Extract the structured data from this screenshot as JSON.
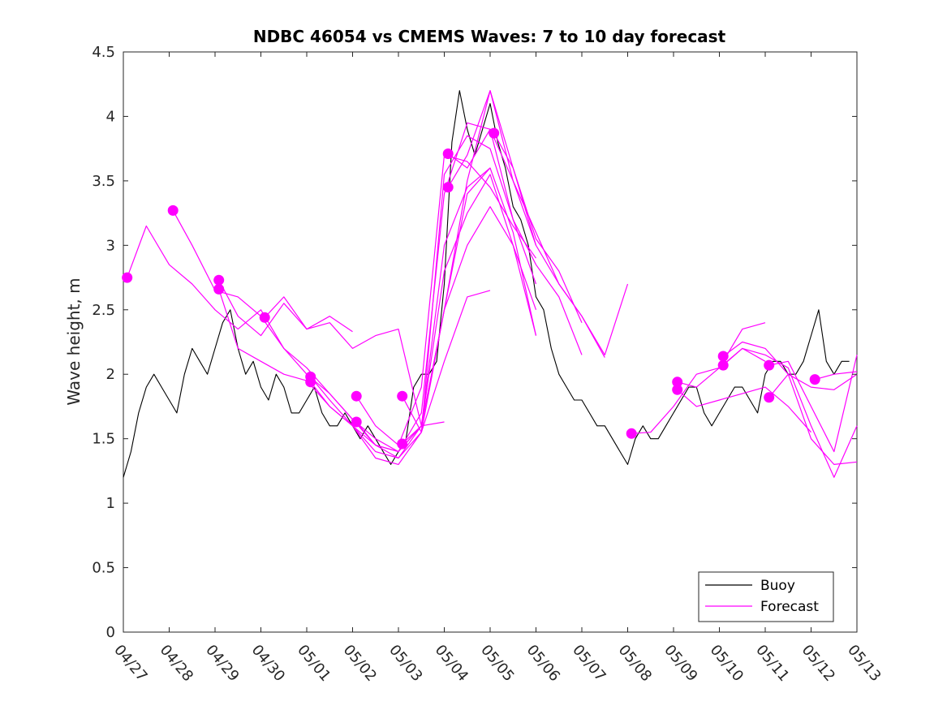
{
  "chart_data": {
    "type": "line",
    "title": "NDBC 46054 vs CMEMS Waves: 7 to 10 day forecast",
    "xlabel": "",
    "ylabel": "Wave height, m",
    "x_axis": {
      "type": "date",
      "min": "04/27",
      "max": "05/13",
      "unit": "days"
    },
    "xtick_labels": [
      "04/27",
      "04/28",
      "04/29",
      "04/30",
      "05/01",
      "05/02",
      "05/03",
      "05/04",
      "05/05",
      "05/06",
      "05/07",
      "05/08",
      "05/09",
      "05/10",
      "05/11",
      "05/12",
      "05/13"
    ],
    "ylim": [
      0,
      4.5
    ],
    "yticks": [
      0,
      0.5,
      1,
      1.5,
      2,
      2.5,
      3,
      3.5,
      4,
      4.5
    ],
    "ytick_labels": [
      "0",
      "0.5",
      "1",
      "1.5",
      "2",
      "2.5",
      "3",
      "3.5",
      "4",
      "4.5"
    ],
    "grid": false,
    "legend": {
      "position": "bottom-right",
      "entries": [
        "Buoy",
        "Forecast"
      ]
    },
    "colors": {
      "buoy": "#000000",
      "forecast": "#ff00ff"
    },
    "series": [
      {
        "name": "Buoy",
        "x": [
          "04/27 00:00",
          "04/27 04:00",
          "04/27 08:00",
          "04/27 12:00",
          "04/27 16:00",
          "04/27 20:00",
          "04/28 00:00",
          "04/28 04:00",
          "04/28 08:00",
          "04/28 12:00",
          "04/28 16:00",
          "04/28 20:00",
          "04/29 00:00",
          "04/29 04:00",
          "04/29 08:00",
          "04/29 12:00",
          "04/29 16:00",
          "04/29 20:00",
          "04/30 00:00",
          "04/30 04:00",
          "04/30 08:00",
          "04/30 12:00",
          "04/30 16:00",
          "04/30 20:00",
          "05/01 00:00",
          "05/01 04:00",
          "05/01 08:00",
          "05/01 12:00",
          "05/01 16:00",
          "05/01 20:00",
          "05/02 00:00",
          "05/02 04:00",
          "05/02 08:00",
          "05/02 12:00",
          "05/02 16:00",
          "05/02 20:00",
          "05/03 00:00",
          "05/03 04:00",
          "05/03 08:00",
          "05/03 12:00",
          "05/03 16:00",
          "05/03 20:00",
          "05/04 00:00",
          "05/04 04:00",
          "05/04 08:00",
          "05/04 12:00",
          "05/04 16:00",
          "05/04 20:00",
          "05/05 00:00",
          "05/05 04:00",
          "05/05 08:00",
          "05/05 12:00",
          "05/05 16:00",
          "05/05 20:00",
          "05/06 00:00",
          "05/06 04:00",
          "05/06 08:00",
          "05/06 12:00",
          "05/06 16:00",
          "05/06 20:00",
          "05/07 00:00",
          "05/07 04:00",
          "05/07 08:00",
          "05/07 12:00",
          "05/07 16:00",
          "05/07 20:00",
          "05/08 00:00",
          "05/08 04:00",
          "05/08 08:00",
          "05/08 12:00",
          "05/08 16:00",
          "05/08 20:00",
          "05/09 00:00",
          "05/09 04:00",
          "05/09 08:00",
          "05/09 12:00",
          "05/09 16:00",
          "05/09 20:00",
          "05/10 00:00",
          "05/10 04:00",
          "05/10 08:00",
          "05/10 12:00",
          "05/10 16:00",
          "05/10 20:00",
          "05/11 00:00",
          "05/11 04:00",
          "05/11 08:00",
          "05/11 12:00",
          "05/11 16:00",
          "05/11 20:00",
          "05/12 00:00",
          "05/12 04:00",
          "05/12 08:00",
          "05/12 12:00",
          "05/12 16:00",
          "05/12 20:00"
        ],
        "y": [
          1.2,
          1.4,
          1.7,
          1.9,
          2.0,
          1.9,
          1.8,
          1.7,
          2.0,
          2.2,
          2.1,
          2.0,
          2.2,
          2.4,
          2.5,
          2.2,
          2.0,
          2.1,
          1.9,
          1.8,
          2.0,
          1.9,
          1.7,
          1.7,
          1.8,
          1.9,
          1.7,
          1.6,
          1.6,
          1.7,
          1.6,
          1.5,
          1.6,
          1.5,
          1.4,
          1.3,
          1.4,
          1.5,
          1.9,
          2.0,
          2.0,
          2.1,
          2.7,
          3.8,
          4.2,
          3.9,
          3.7,
          3.9,
          4.1,
          3.8,
          3.6,
          3.3,
          3.2,
          3.0,
          2.6,
          2.5,
          2.2,
          2.0,
          1.9,
          1.8,
          1.8,
          1.7,
          1.6,
          1.6,
          1.5,
          1.4,
          1.3,
          1.5,
          1.6,
          1.5,
          1.5,
          1.6,
          1.7,
          1.8,
          1.9,
          1.9,
          1.7,
          1.6,
          1.7,
          1.8,
          1.9,
          1.9,
          1.8,
          1.7,
          2.0,
          2.1,
          2.1,
          2.0,
          2.0,
          2.1,
          2.3,
          2.5,
          2.1,
          2.0,
          2.1,
          2.1
        ]
      },
      {
        "name": "Forecast",
        "runs": [
          {
            "x": [
              "04/27 02:00",
              "04/27 12:00",
              "04/28 00:00",
              "04/28 12:00",
              "04/29 00:00",
              "04/29 12:00",
              "04/30 00:00",
              "04/30 12:00",
              "05/01 00:00",
              "05/01 12:00",
              "05/02 00:00",
              "05/02 12:00",
              "05/03 00:00",
              "05/03 12:00",
              "05/04 00:00",
              "05/04 12:00",
              "05/05 00:00",
              "05/05 12:00",
              "05/06 00:00",
              "05/06 12:00",
              "05/07 00:00",
              "05/07 12:00",
              "05/08 00:00"
            ],
            "y": [
              2.75,
              3.15,
              2.85,
              2.7,
              2.5,
              2.35,
              2.5,
              2.2,
              2.05,
              1.85,
              1.65,
              1.5,
              1.4,
              1.7,
              3.4,
              3.95,
              3.9,
              3.5,
              3.1,
              2.7,
              2.45,
              2.15,
              2.7
            ],
            "marker_index": 0
          },
          {
            "x": [
              "04/28 02:00",
              "04/28 12:00",
              "04/29 00:00",
              "04/29 12:00",
              "04/30 00:00",
              "04/30 12:00",
              "05/01 00:00",
              "05/01 12:00",
              "05/02 00:00",
              "05/02 12:00",
              "05/03 00:00",
              "05/03 12:00",
              "05/04 00:00",
              "05/04 12:00",
              "05/05 00:00",
              "05/05 12:00",
              "05/06 00:00",
              "05/06 12:00",
              "05/07 00:00"
            ],
            "y": [
              3.27,
              3.0,
              2.65,
              2.6,
              2.45,
              2.2,
              2.0,
              1.85,
              1.65,
              1.45,
              1.35,
              1.55,
              3.55,
              3.85,
              3.75,
              3.2,
              2.85,
              2.6,
              2.15
            ],
            "marker_index": 0
          },
          {
            "x": [
              "04/29 02:00",
              "04/29 12:00",
              "04/30 00:00",
              "04/30 12:00",
              "05/01 00:00",
              "05/01 12:00",
              "05/02 00:00",
              "05/02 12:00",
              "05/03 00:00",
              "05/03 12:00",
              "05/04 00:00",
              "05/04 12:00",
              "05/05 00:00",
              "05/05 12:00",
              "05/06 00:00"
            ],
            "y": [
              2.73,
              2.45,
              2.3,
              2.55,
              2.35,
              2.4,
              2.2,
              2.3,
              2.35,
              1.6,
              3.0,
              3.45,
              3.6,
              3.1,
              2.3
            ],
            "marker_index": 0
          },
          {
            "x": [
              "04/29 02:00",
              "04/29 12:00",
              "04/30 00:00",
              "04/30 12:00",
              "05/01 00:00",
              "05/01 12:00",
              "05/02 00:00",
              "05/02 12:00",
              "05/03 00:00",
              "05/03 12:00",
              "05/04 00:00",
              "05/04 12:00",
              "05/05 00:00",
              "05/05 12:00",
              "05/06 00:00"
            ],
            "y": [
              2.66,
              2.2,
              2.1,
              2.0,
              1.95,
              1.75,
              1.6,
              1.4,
              1.35,
              1.6,
              2.5,
              3.0,
              3.3,
              3.0,
              2.5
            ],
            "marker_index": 0
          },
          {
            "x": [
              "04/30 02:00",
              "04/30 12:00",
              "05/01 00:00",
              "05/01 12:00",
              "05/02 00:00"
            ],
            "y": [
              2.44,
              2.6,
              2.35,
              2.45,
              2.33
            ],
            "marker_index": 0
          },
          {
            "x": [
              "05/01 02:00",
              "05/01 12:00",
              "05/02 00:00",
              "05/02 12:00",
              "05/03 00:00",
              "05/03 12:00",
              "05/04 00:00",
              "05/04 12:00",
              "05/05 00:00"
            ],
            "y": [
              1.98,
              1.8,
              1.6,
              1.35,
              1.3,
              1.55,
              2.1,
              2.6,
              2.65
            ],
            "marker_index": 0
          },
          {
            "x": [
              "05/01 02:00",
              "05/01 12:00",
              "05/02 00:00",
              "05/02 12:00",
              "05/03 00:00",
              "05/03 12:00",
              "05/04 00:00"
            ],
            "y": [
              1.94,
              1.75,
              1.6,
              1.45,
              1.4,
              1.6,
              1.63
            ],
            "marker_index": 0
          },
          {
            "x": [
              "05/02 02:00",
              "05/02 12:00",
              "05/03 00:00",
              "05/03 12:00",
              "05/04 00:00",
              "05/04 12:00",
              "05/05 00:00",
              "05/05 12:00",
              "05/06 00:00"
            ],
            "y": [
              1.83,
              1.6,
              1.45,
              1.9,
              3.7,
              3.65,
              3.45,
              3.15,
              2.9
            ],
            "marker_index": 0
          },
          {
            "x": [
              "05/02 02:00",
              "05/02 12:00",
              "05/03 00:00",
              "05/03 12:00",
              "05/04 00:00",
              "05/04 12:00",
              "05/05 00:00"
            ],
            "y": [
              1.63,
              1.45,
              1.4,
              1.6,
              2.5,
              3.4,
              3.6
            ],
            "marker_index": 0
          },
          {
            "x": [
              "05/03 02:00",
              "05/03 12:00",
              "05/04 00:00",
              "05/04 12:00",
              "05/05 00:00",
              "05/05 12:00",
              "05/06 00:00",
              "05/06 12:00",
              "05/07 00:00",
              "05/07 12:00"
            ],
            "y": [
              1.83,
              1.55,
              2.5,
              3.5,
              4.2,
              3.5,
              3.0,
              2.7,
              2.45,
              2.13
            ],
            "marker_index": 0
          },
          {
            "x": [
              "05/03 02:00",
              "05/03 12:00",
              "05/04 00:00",
              "05/04 12:00",
              "05/05 00:00",
              "05/05 12:00",
              "05/06 00:00"
            ],
            "y": [
              1.46,
              1.6,
              2.8,
              3.25,
              3.55,
              3.0,
              2.3
            ],
            "marker_index": 0
          },
          {
            "x": [
              "05/04 02:00",
              "05/04 12:00",
              "05/05 00:00",
              "05/05 12:00",
              "05/06 00:00"
            ],
            "y": [
              3.71,
              3.6,
              3.9,
              3.2,
              2.7
            ],
            "marker_index": 0
          },
          {
            "x": [
              "05/04 02:00",
              "05/04 12:00",
              "05/05 00:00",
              "05/05 12:00",
              "05/06 00:00"
            ],
            "y": [
              3.45,
              3.7,
              4.2,
              3.6,
              3.0
            ],
            "marker_index": 0
          },
          {
            "x": [
              "05/05 02:00",
              "05/05 12:00",
              "05/06 00:00",
              "05/06 12:00",
              "05/07 00:00"
            ],
            "y": [
              3.87,
              3.6,
              3.05,
              2.8,
              2.4
            ],
            "marker_index": 0
          },
          {
            "x": [
              "05/08 02:00",
              "05/08 12:00",
              "05/09 00:00",
              "05/09 12:00",
              "05/10 00:00",
              "05/10 12:00",
              "05/11 00:00"
            ],
            "y": [
              1.54,
              1.55,
              1.75,
              2.0,
              2.05,
              2.2,
              2.1
            ],
            "marker_index": 0
          },
          {
            "x": [
              "05/09 02:00",
              "05/09 12:00",
              "05/10 00:00",
              "05/10 12:00",
              "05/11 00:00"
            ],
            "y": [
              1.94,
              1.9,
              2.05,
              2.35,
              2.4
            ],
            "marker_index": 0
          },
          {
            "x": [
              "05/09 02:00",
              "05/09 12:00",
              "05/10 00:00",
              "05/10 12:00",
              "05/11 00:00",
              "05/11 12:00",
              "05/12 00:00"
            ],
            "y": [
              1.88,
              1.75,
              1.8,
              1.85,
              1.9,
              1.75,
              1.55
            ],
            "marker_index": 0
          },
          {
            "x": [
              "05/10 02:00",
              "05/10 12:00",
              "05/11 00:00",
              "05/11 12:00",
              "05/12 00:00",
              "05/12 12:00",
              "05/13 00:00"
            ],
            "y": [
              2.14,
              2.25,
              2.2,
              2.0,
              1.5,
              1.3,
              1.32
            ],
            "marker_index": 0
          },
          {
            "x": [
              "05/10 02:00",
              "05/10 12:00",
              "05/11 00:00",
              "05/11 12:00",
              "05/12 00:00",
              "05/12 12:00",
              "05/13 00:00"
            ],
            "y": [
              2.07,
              2.2,
              2.15,
              2.05,
              1.6,
              1.2,
              1.6
            ],
            "marker_index": 0
          },
          {
            "x": [
              "05/11 02:00",
              "05/11 12:00",
              "05/12 00:00",
              "05/12 12:00",
              "05/13 00:00"
            ],
            "y": [
              2.07,
              2.1,
              1.75,
              1.4,
              2.15
            ],
            "marker_index": 0
          },
          {
            "x": [
              "05/11 02:00",
              "05/11 12:00",
              "05/12 00:00",
              "05/12 12:00",
              "05/13 00:00"
            ],
            "y": [
              1.82,
              2.0,
              1.9,
              1.88,
              2.0
            ],
            "marker_index": 0
          },
          {
            "x": [
              "05/12 02:00",
              "05/12 12:00",
              "05/13 00:00"
            ],
            "y": [
              1.96,
              2.0,
              2.02
            ],
            "marker_index": 0
          }
        ]
      }
    ]
  }
}
